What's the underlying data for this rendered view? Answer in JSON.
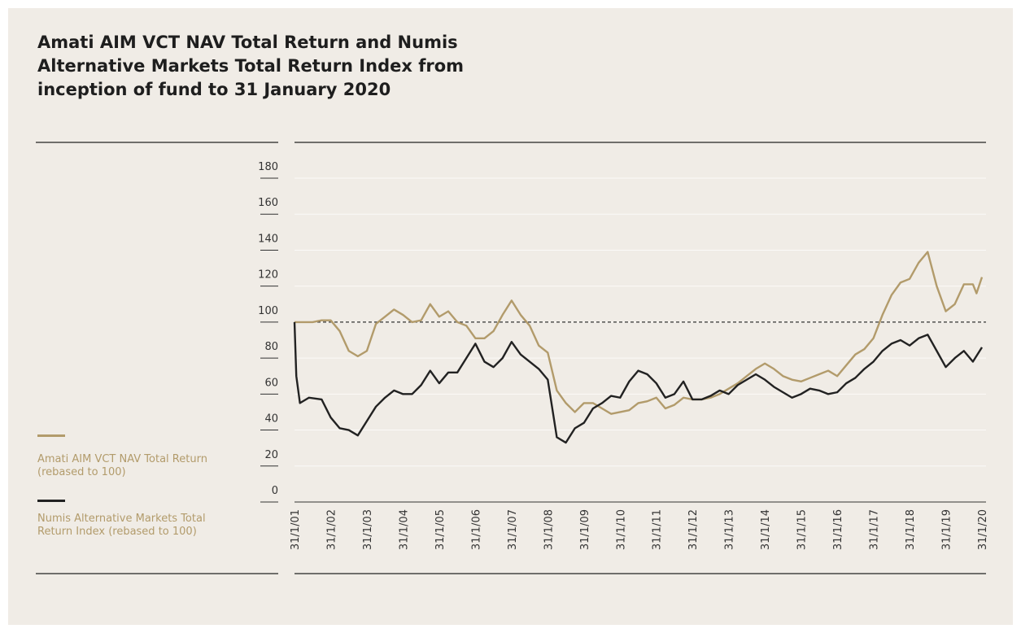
{
  "chart_data": {
    "type": "line",
    "title": "Amati AIM VCT NAV Total Return and Numis Alternative Markets Total Return Index from inception of fund to 31 January 2020",
    "xlim": [
      2001,
      2020
    ],
    "xticks": [
      {
        "value": 2001,
        "label": "31/1/01"
      },
      {
        "value": 2002,
        "label": "31/1/02"
      },
      {
        "value": 2003,
        "label": "31/1/03"
      },
      {
        "value": 2004,
        "label": "31/1/04"
      },
      {
        "value": 2005,
        "label": "31/1/05"
      },
      {
        "value": 2006,
        "label": "31/1/06"
      },
      {
        "value": 2007,
        "label": "31/1/07"
      },
      {
        "value": 2008,
        "label": "31/1/08"
      },
      {
        "value": 2009,
        "label": "31/1/09"
      },
      {
        "value": 2010,
        "label": "31/1/10"
      },
      {
        "value": 2011,
        "label": "31/1/11"
      },
      {
        "value": 2012,
        "label": "31/1/12"
      },
      {
        "value": 2013,
        "label": "31/1/13"
      },
      {
        "value": 2014,
        "label": "31/1/14"
      },
      {
        "value": 2015,
        "label": "31/1/15"
      },
      {
        "value": 2016,
        "label": "31/1/16"
      },
      {
        "value": 2017,
        "label": "31/1/17"
      },
      {
        "value": 2018,
        "label": "31/1/18"
      },
      {
        "value": 2019,
        "label": "31/1/19"
      },
      {
        "value": 2020,
        "label": "31/1/20"
      }
    ],
    "ylim": [
      0,
      180
    ],
    "yticks": [
      0,
      20,
      40,
      60,
      80,
      100,
      120,
      140,
      160,
      180
    ],
    "grid": true,
    "reference_line": 100,
    "series": [
      {
        "name": "Amati AIM VCT NAV Total Return (rebased to 100)",
        "color": "#b29b6b",
        "x": [
          2001,
          2001.25,
          2001.5,
          2001.75,
          2002,
          2002.25,
          2002.5,
          2002.75,
          2003,
          2003.25,
          2003.5,
          2003.75,
          2004,
          2004.25,
          2004.5,
          2004.75,
          2005,
          2005.25,
          2005.5,
          2005.75,
          2006,
          2006.25,
          2006.5,
          2006.75,
          2007,
          2007.25,
          2007.5,
          2007.75,
          2008,
          2008.25,
          2008.5,
          2008.75,
          2009,
          2009.25,
          2009.5,
          2009.75,
          2010,
          2010.25,
          2010.5,
          2010.75,
          2011,
          2011.25,
          2011.5,
          2011.75,
          2012,
          2012.25,
          2012.5,
          2012.75,
          2013,
          2013.25,
          2013.5,
          2013.75,
          2014,
          2014.25,
          2014.5,
          2014.75,
          2015,
          2015.25,
          2015.5,
          2015.75,
          2016,
          2016.25,
          2016.5,
          2016.75,
          2017,
          2017.25,
          2017.5,
          2017.75,
          2018,
          2018.25,
          2018.5,
          2018.75,
          2019,
          2019.25,
          2019.5,
          2019.75,
          2019.85,
          2020
        ],
        "values": [
          100,
          100,
          100,
          101,
          101,
          95,
          84,
          81,
          84,
          99,
          103,
          107,
          104,
          100,
          101,
          110,
          103,
          106,
          100,
          98,
          91,
          91,
          95,
          104,
          112,
          104,
          98,
          87,
          83,
          62,
          55,
          50,
          55,
          55,
          52,
          49,
          50,
          51,
          55,
          56,
          58,
          52,
          54,
          58,
          57,
          57,
          58,
          60,
          63,
          66,
          70,
          74,
          77,
          74,
          70,
          68,
          67,
          69,
          71,
          73,
          70,
          76,
          82,
          85,
          91,
          104,
          115,
          122,
          124,
          133,
          139,
          120,
          106,
          110,
          121,
          121,
          116,
          125
        ]
      },
      {
        "name": "Numis Alternative Markets Total Return Index (rebased to 100)",
        "color": "#222222",
        "x": [
          2001,
          2001.05,
          2001.15,
          2001.4,
          2001.75,
          2002,
          2002.25,
          2002.5,
          2002.75,
          2003,
          2003.25,
          2003.5,
          2003.75,
          2004,
          2004.25,
          2004.5,
          2004.75,
          2005,
          2005.25,
          2005.5,
          2005.75,
          2006,
          2006.25,
          2006.5,
          2006.75,
          2007,
          2007.25,
          2007.5,
          2007.75,
          2008,
          2008.25,
          2008.5,
          2008.75,
          2009,
          2009.25,
          2009.5,
          2009.75,
          2010,
          2010.25,
          2010.5,
          2010.75,
          2011,
          2011.25,
          2011.5,
          2011.75,
          2012,
          2012.25,
          2012.5,
          2012.75,
          2013,
          2013.25,
          2013.5,
          2013.75,
          2014,
          2014.25,
          2014.5,
          2014.75,
          2015,
          2015.25,
          2015.5,
          2015.75,
          2016,
          2016.25,
          2016.5,
          2016.75,
          2017,
          2017.25,
          2017.5,
          2017.75,
          2018,
          2018.25,
          2018.5,
          2018.75,
          2019,
          2019.25,
          2019.5,
          2019.75,
          2020
        ],
        "values": [
          100,
          70,
          55,
          58,
          57,
          47,
          41,
          40,
          37,
          45,
          53,
          58,
          62,
          60,
          60,
          65,
          73,
          66,
          72,
          72,
          80,
          88,
          78,
          75,
          80,
          89,
          82,
          78,
          74,
          68,
          36,
          33,
          41,
          44,
          52,
          55,
          59,
          58,
          67,
          73,
          71,
          66,
          58,
          60,
          67,
          57,
          57,
          59,
          62,
          60,
          65,
          68,
          71,
          68,
          64,
          61,
          58,
          60,
          63,
          62,
          60,
          61,
          66,
          69,
          74,
          78,
          84,
          88,
          90,
          87,
          91,
          93,
          84,
          75,
          80,
          84,
          78,
          86
        ]
      }
    ]
  }
}
